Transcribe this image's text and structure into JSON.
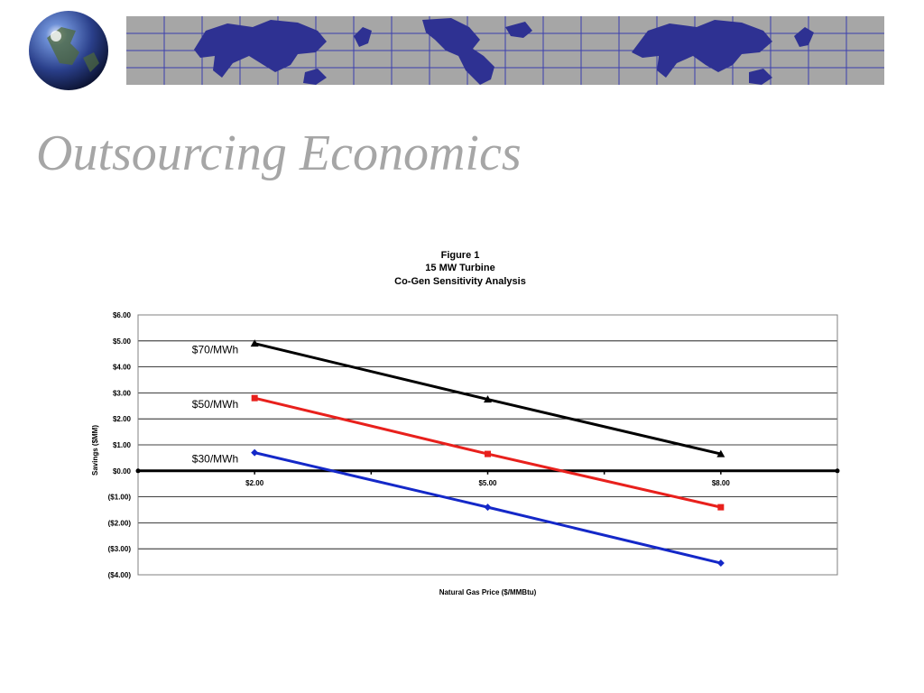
{
  "slide": {
    "title": "Outsourcing Economics"
  },
  "banner": {
    "icons": [
      "globe-icon",
      "world-map-icon"
    ]
  },
  "chart_data": {
    "type": "line",
    "title_lines": [
      "Figure 1",
      "15 MW Turbine",
      "Co-Gen Sensitivity Analysis"
    ],
    "xlabel": "Natural Gas Price ($/MMBtu)",
    "ylabel": "Savings ($MM)",
    "x_tick_labels": [
      "$2.00",
      "$5.00",
      "$8.00"
    ],
    "y_tick_labels": [
      "$6.00",
      "$5.00",
      "$4.00",
      "$3.00",
      "$2.00",
      "$1.00",
      "$0.00",
      "($1.00)",
      "($2.00)",
      "($3.00)",
      "($4.00)"
    ],
    "x": [
      2,
      5,
      8
    ],
    "xlim": [
      0.5,
      9.5
    ],
    "ylim": [
      -4,
      6
    ],
    "grid": true,
    "series": [
      {
        "name": "$70/MWh",
        "values": [
          4.9,
          2.75,
          0.65
        ],
        "color": "#000000",
        "marker": "triangle"
      },
      {
        "name": "$50/MWh",
        "values": [
          2.8,
          0.65,
          -1.4
        ],
        "color": "#e8201c",
        "marker": "square"
      },
      {
        "name": "$30/MWh",
        "values": [
          0.7,
          -1.4,
          -3.55
        ],
        "color": "#1428c8",
        "marker": "diamond"
      }
    ]
  }
}
